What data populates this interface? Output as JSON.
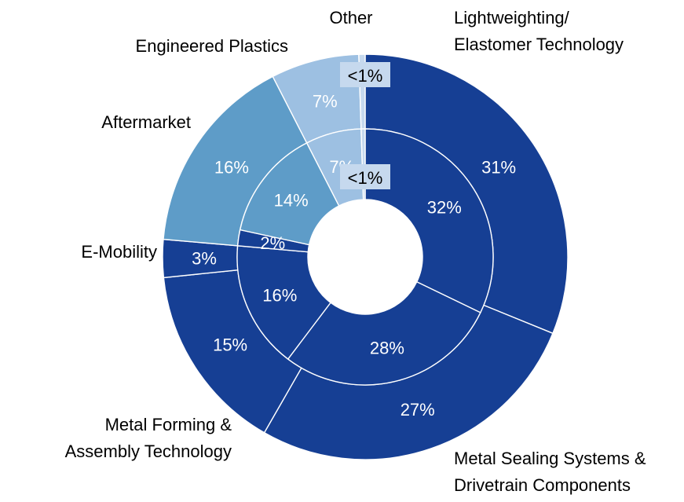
{
  "chart_data": {
    "type": "pie",
    "variant": "nested-donut",
    "title": "",
    "categories": [
      "Lightweighting/\nElastomer Technology",
      "Metal Sealing Systems &\nDrivetrain Components",
      "Metal Forming &\nAssembly Technology",
      "E-Mobility",
      "Aftermarket",
      "Engineered Plastics",
      "Other"
    ],
    "series": [
      {
        "ring": "outer",
        "values": [
          31,
          27,
          15,
          3,
          16,
          7,
          0.5
        ],
        "labels": [
          "31%",
          "27%",
          "15%",
          "3%",
          "16%",
          "7%",
          "<1%"
        ]
      },
      {
        "ring": "inner",
        "values": [
          32,
          28,
          16,
          2,
          14,
          7,
          0.5
        ],
        "labels": [
          "32%",
          "28%",
          "16%",
          "2%",
          "14%",
          "7%",
          "<1%"
        ]
      }
    ],
    "colors": [
      "#163f94",
      "#163f94",
      "#163f94",
      "#163f94",
      "#5e9cc8",
      "#9dc0e2",
      "#c6d9ee"
    ],
    "legend": "labels placed around the chart"
  }
}
